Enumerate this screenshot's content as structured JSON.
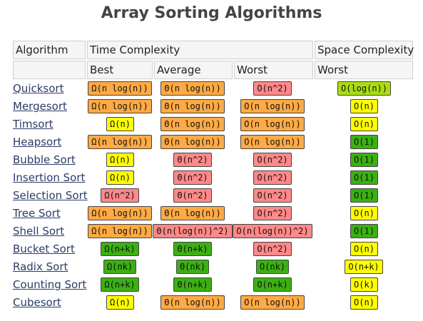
{
  "title": "Array Sorting Algorithms",
  "headers": {
    "algorithm": "Algorithm",
    "time_complexity": "Time Complexity",
    "space_complexity": "Space Complexity",
    "best": "Best",
    "average": "Average",
    "worst": "Worst",
    "space_worst": "Worst"
  },
  "colors": {
    "green": "#3cb012",
    "lightgreen": "#aadd11",
    "yellow": "#ffff00",
    "orange": "#ffaa44",
    "red": "#ff8888"
  },
  "rows": [
    {
      "name": "Quicksort",
      "best": {
        "text": "Ω(n log(n))",
        "color": "orange"
      },
      "average": {
        "text": "Θ(n log(n))",
        "color": "orange"
      },
      "worst": {
        "text": "O(n^2)",
        "color": "red"
      },
      "space": {
        "text": "O(log(n))",
        "color": "lightgreen"
      }
    },
    {
      "name": "Mergesort",
      "best": {
        "text": "Ω(n log(n))",
        "color": "orange"
      },
      "average": {
        "text": "Θ(n log(n))",
        "color": "orange"
      },
      "worst": {
        "text": "O(n log(n))",
        "color": "orange"
      },
      "space": {
        "text": "O(n)",
        "color": "yellow"
      }
    },
    {
      "name": "Timsort",
      "best": {
        "text": "Ω(n)",
        "color": "yellow"
      },
      "average": {
        "text": "Θ(n log(n))",
        "color": "orange"
      },
      "worst": {
        "text": "O(n log(n))",
        "color": "orange"
      },
      "space": {
        "text": "O(n)",
        "color": "yellow"
      }
    },
    {
      "name": "Heapsort",
      "best": {
        "text": "Ω(n log(n))",
        "color": "orange"
      },
      "average": {
        "text": "Θ(n log(n))",
        "color": "orange"
      },
      "worst": {
        "text": "O(n log(n))",
        "color": "orange"
      },
      "space": {
        "text": "O(1)",
        "color": "green"
      }
    },
    {
      "name": "Bubble Sort",
      "best": {
        "text": "Ω(n)",
        "color": "yellow"
      },
      "average": {
        "text": "Θ(n^2)",
        "color": "red"
      },
      "worst": {
        "text": "O(n^2)",
        "color": "red"
      },
      "space": {
        "text": "O(1)",
        "color": "green"
      }
    },
    {
      "name": "Insertion Sort",
      "best": {
        "text": "Ω(n)",
        "color": "yellow"
      },
      "average": {
        "text": "Θ(n^2)",
        "color": "red"
      },
      "worst": {
        "text": "O(n^2)",
        "color": "red"
      },
      "space": {
        "text": "O(1)",
        "color": "green"
      }
    },
    {
      "name": "Selection Sort",
      "best": {
        "text": "Ω(n^2)",
        "color": "red"
      },
      "average": {
        "text": "Θ(n^2)",
        "color": "red"
      },
      "worst": {
        "text": "O(n^2)",
        "color": "red"
      },
      "space": {
        "text": "O(1)",
        "color": "green"
      }
    },
    {
      "name": "Tree Sort",
      "best": {
        "text": "Ω(n log(n))",
        "color": "orange"
      },
      "average": {
        "text": "Θ(n log(n))",
        "color": "orange"
      },
      "worst": {
        "text": "O(n^2)",
        "color": "red"
      },
      "space": {
        "text": "O(n)",
        "color": "yellow"
      }
    },
    {
      "name": "Shell Sort",
      "best": {
        "text": "Ω(n log(n))",
        "color": "orange"
      },
      "average": {
        "text": "Θ(n(log(n))^2)",
        "color": "red"
      },
      "worst": {
        "text": "O(n(log(n))^2)",
        "color": "red"
      },
      "space": {
        "text": "O(1)",
        "color": "green"
      }
    },
    {
      "name": "Bucket Sort",
      "best": {
        "text": "Ω(n+k)",
        "color": "green"
      },
      "average": {
        "text": "Θ(n+k)",
        "color": "green"
      },
      "worst": {
        "text": "O(n^2)",
        "color": "red"
      },
      "space": {
        "text": "O(n)",
        "color": "yellow"
      }
    },
    {
      "name": "Radix Sort",
      "best": {
        "text": "Ω(nk)",
        "color": "green"
      },
      "average": {
        "text": "Θ(nk)",
        "color": "green"
      },
      "worst": {
        "text": "O(nk)",
        "color": "green"
      },
      "space": {
        "text": "O(n+k)",
        "color": "yellow"
      }
    },
    {
      "name": "Counting Sort",
      "best": {
        "text": "Ω(n+k)",
        "color": "green"
      },
      "average": {
        "text": "Θ(n+k)",
        "color": "green"
      },
      "worst": {
        "text": "O(n+k)",
        "color": "green"
      },
      "space": {
        "text": "O(k)",
        "color": "yellow"
      }
    },
    {
      "name": "Cubesort",
      "best": {
        "text": "Ω(n)",
        "color": "yellow"
      },
      "average": {
        "text": "Θ(n log(n))",
        "color": "orange"
      },
      "worst": {
        "text": "O(n log(n))",
        "color": "orange"
      },
      "space": {
        "text": "O(n)",
        "color": "yellow"
      }
    }
  ]
}
